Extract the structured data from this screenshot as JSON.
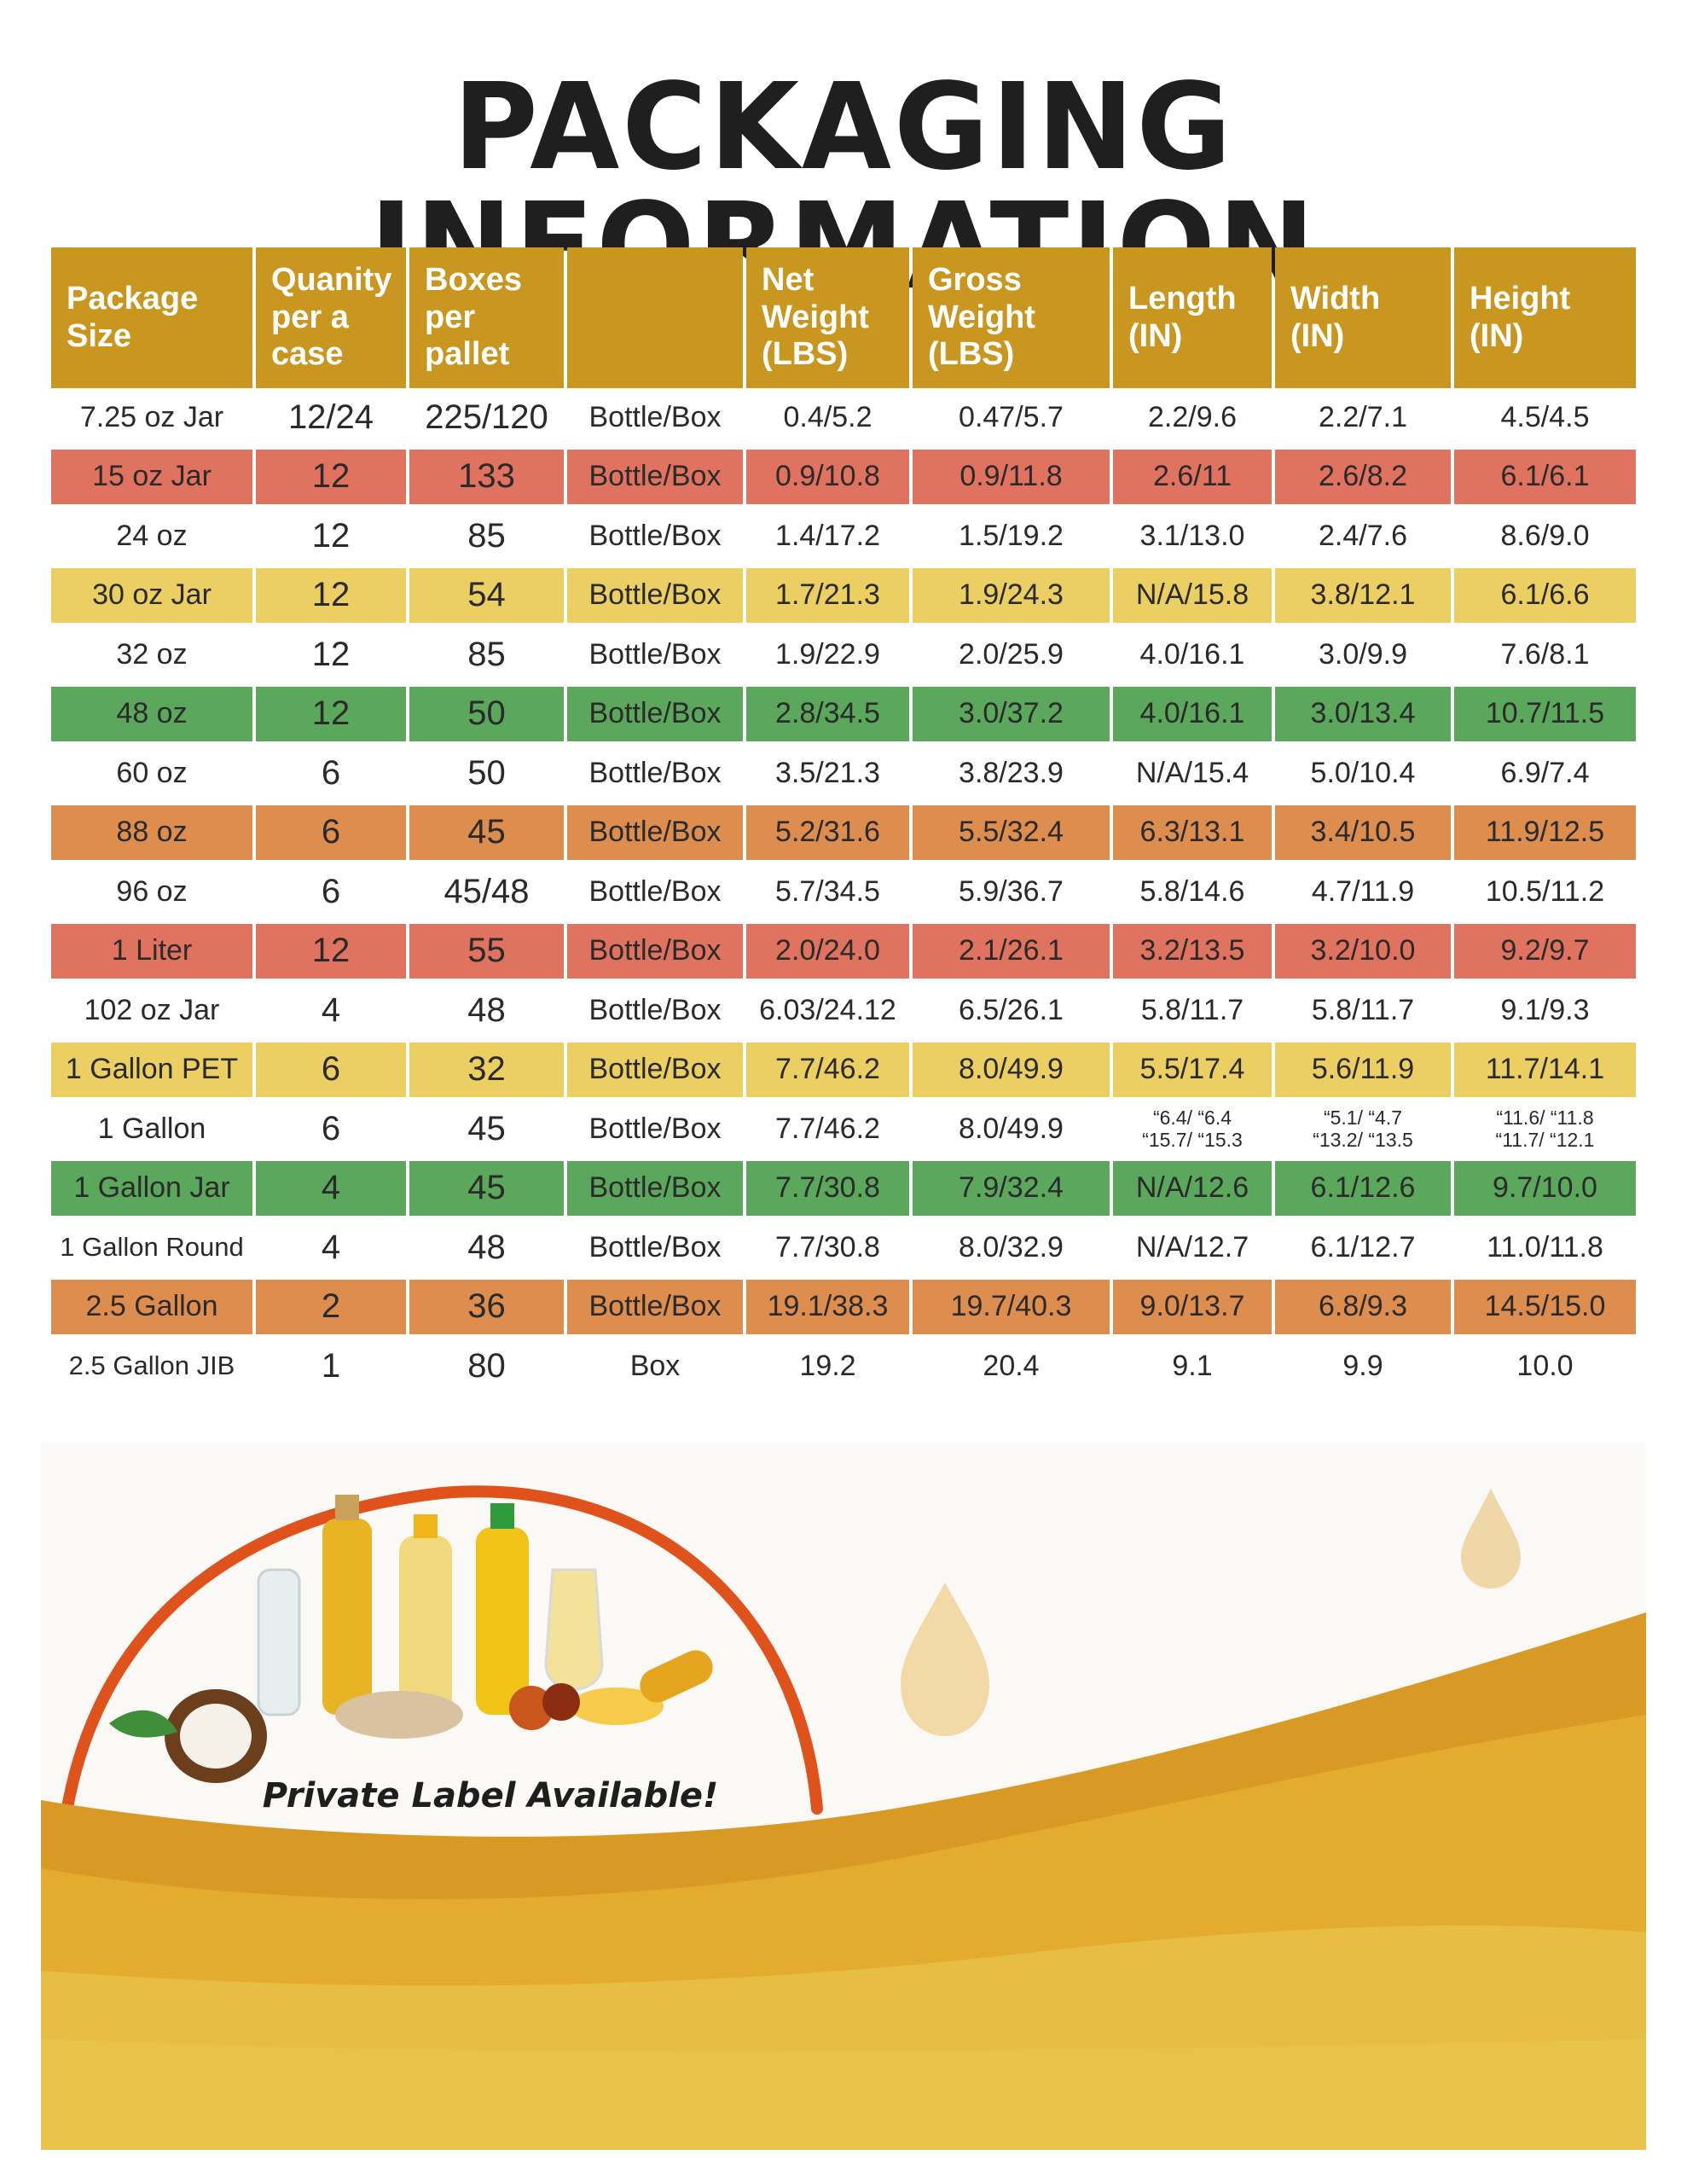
{
  "title": "PACKAGING INFORMATION",
  "table": {
    "headers": [
      "Package\nSize",
      "Quanity\nper a\ncase",
      "Boxes\nper\npallet",
      "",
      "Net\nWeight\n(LBS)",
      "Gross\nWeight\n(LBS)",
      "Length\n(IN)",
      "Width\n(IN)",
      "Height\n(IN)"
    ],
    "rows": [
      {
        "style": "plain",
        "cells": [
          "7.25 oz Jar",
          "12/24",
          "225/120",
          "Bottle/Box",
          "0.4/5.2",
          "0.47/5.7",
          "2.2/9.6",
          "2.2/7.1",
          "4.5/4.5"
        ]
      },
      {
        "style": "red",
        "cells": [
          "15 oz Jar",
          "12",
          "133",
          "Bottle/Box",
          "0.9/10.8",
          "0.9/11.8",
          "2.6/11",
          "2.6/8.2",
          "6.1/6.1"
        ]
      },
      {
        "style": "plain",
        "cells": [
          "24 oz",
          "12",
          "85",
          "Bottle/Box",
          "1.4/17.2",
          "1.5/19.2",
          "3.1/13.0",
          "2.4/7.6",
          "8.6/9.0"
        ]
      },
      {
        "style": "yellow",
        "cells": [
          "30 oz Jar",
          "12",
          "54",
          "Bottle/Box",
          "1.7/21.3",
          "1.9/24.3",
          "N/A/15.8",
          "3.8/12.1",
          "6.1/6.6"
        ]
      },
      {
        "style": "plain",
        "cells": [
          "32 oz",
          "12",
          "85",
          "Bottle/Box",
          "1.9/22.9",
          "2.0/25.9",
          "4.0/16.1",
          "3.0/9.9",
          "7.6/8.1"
        ]
      },
      {
        "style": "green",
        "cells": [
          "48 oz",
          "12",
          "50",
          "Bottle/Box",
          "2.8/34.5",
          "3.0/37.2",
          "4.0/16.1",
          "3.0/13.4",
          "10.7/11.5"
        ]
      },
      {
        "style": "plain",
        "cells": [
          "60 oz",
          "6",
          "50",
          "Bottle/Box",
          "3.5/21.3",
          "3.8/23.9",
          "N/A/15.4",
          "5.0/10.4",
          "6.9/7.4"
        ]
      },
      {
        "style": "orange",
        "cells": [
          "88 oz",
          "6",
          "45",
          "Bottle/Box",
          "5.2/31.6",
          "5.5/32.4",
          "6.3/13.1",
          "3.4/10.5",
          "11.9/12.5"
        ]
      },
      {
        "style": "plain",
        "cells": [
          "96 oz",
          "6",
          "45/48",
          "Bottle/Box",
          "5.7/34.5",
          "5.9/36.7",
          "5.8/14.6",
          "4.7/11.9",
          "10.5/11.2"
        ]
      },
      {
        "style": "red",
        "cells": [
          "1 Liter",
          "12",
          "55",
          "Bottle/Box",
          "2.0/24.0",
          "2.1/26.1",
          "3.2/13.5",
          "3.2/10.0",
          "9.2/9.7"
        ]
      },
      {
        "style": "plain",
        "cells": [
          "102 oz Jar",
          "4",
          "48",
          "Bottle/Box",
          "6.03/24.12",
          "6.5/26.1",
          "5.8/11.7",
          "5.8/11.7",
          "9.1/9.3"
        ]
      },
      {
        "style": "yellow",
        "cells": [
          "1 Gallon PET",
          "6",
          "32",
          "Bottle/Box",
          "7.7/46.2",
          "8.0/49.9",
          "5.5/17.4",
          "5.6/11.9",
          "11.7/14.1"
        ]
      },
      {
        "style": "plain",
        "cells": [
          "1 Gallon",
          "6",
          "45",
          "Bottle/Box",
          "7.7/46.2",
          "8.0/49.9",
          "“6.4/ “6.4\n“15.7/ “15.3",
          "“5.1/ “4.7\n“13.2/ “13.5",
          "“11.6/ “11.8\n“11.7/ “12.1"
        ]
      },
      {
        "style": "green",
        "cells": [
          "1 Gallon Jar",
          "4",
          "45",
          "Bottle/Box",
          "7.7/30.8",
          "7.9/32.4",
          "N/A/12.6",
          "6.1/12.6",
          "9.7/10.0"
        ]
      },
      {
        "style": "plain",
        "cells": [
          "1 Gallon Round",
          "4",
          "48",
          "Bottle/Box",
          "7.7/30.8",
          "8.0/32.9",
          "N/A/12.7",
          "6.1/12.7",
          "11.0/11.8"
        ]
      },
      {
        "style": "orange",
        "cells": [
          "2.5 Gallon",
          "2",
          "36",
          "Bottle/Box",
          "19.1/38.3",
          "19.7/40.3",
          "9.0/13.7",
          "6.8/9.3",
          "14.5/15.0"
        ]
      },
      {
        "style": "plain",
        "cells": [
          "2.5 Gallon JIB",
          "1",
          "80",
          "Box",
          "19.2",
          "20.4",
          "9.1",
          "9.9",
          "10.0"
        ]
      }
    ]
  },
  "banner": {
    "tagline": "Private Label Available!",
    "colors": {
      "ring": "#e0521c",
      "wave_light": "#e9b93a",
      "wave_dark": "#d99a25",
      "drop": "#f3d9a8"
    }
  }
}
